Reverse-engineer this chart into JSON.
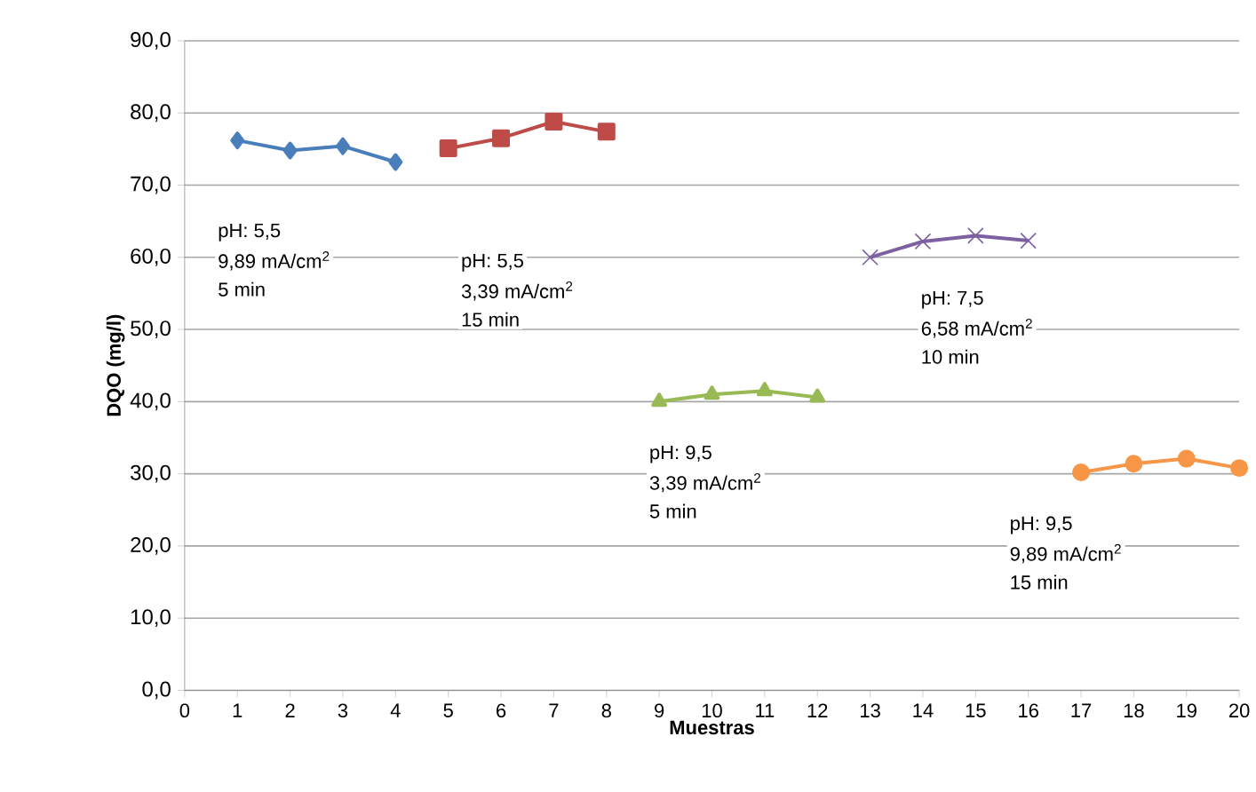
{
  "chart_data": {
    "type": "line",
    "xlabel": "Muestras",
    "ylabel": "DQO  (mg/l)",
    "xlim": [
      0,
      20
    ],
    "xticks": [
      0,
      1,
      2,
      3,
      4,
      5,
      6,
      7,
      8,
      9,
      10,
      11,
      12,
      13,
      14,
      15,
      16,
      17,
      18,
      19,
      20
    ],
    "ylim": [
      0,
      90
    ],
    "yticks": [
      {
        "value": 0,
        "label": "0,0"
      },
      {
        "value": 10,
        "label": "10,0"
      },
      {
        "value": 20,
        "label": "20,0"
      },
      {
        "value": 30,
        "label": "30,0"
      },
      {
        "value": 40,
        "label": "40,0"
      },
      {
        "value": 50,
        "label": "50,0"
      },
      {
        "value": 60,
        "label": "60,0"
      },
      {
        "value": 70,
        "label": "70,0"
      },
      {
        "value": 80,
        "label": "80,0"
      },
      {
        "value": 90,
        "label": "90,0"
      }
    ],
    "grid": "y",
    "series": [
      {
        "color": "#4a7ebb",
        "marker": "diamond",
        "x": [
          1,
          2,
          3,
          4
        ],
        "values": [
          76.2,
          74.8,
          75.4,
          73.2
        ]
      },
      {
        "color": "#be4b48",
        "marker": "square",
        "x": [
          5,
          6,
          7,
          8
        ],
        "values": [
          75.1,
          76.5,
          78.8,
          77.4
        ]
      },
      {
        "color": "#98b954",
        "marker": "triangle",
        "x": [
          9,
          10,
          11,
          12
        ],
        "values": [
          40.0,
          41.0,
          41.5,
          40.6
        ]
      },
      {
        "color": "#7d60a0",
        "marker": "cross",
        "x": [
          13,
          14,
          15,
          16
        ],
        "values": [
          60.0,
          62.2,
          63.0,
          62.3
        ]
      },
      {
        "color": "#f79646",
        "marker": "circle",
        "x": [
          17,
          18,
          19,
          20
        ],
        "values": [
          30.2,
          31.4,
          32.1,
          30.8
        ]
      }
    ],
    "annotations": [
      "pH: 5,5",
      "9,89 mA/cm$^{2}$",
      "5 min",
      "pH: 5,5",
      "3,39 mA/cm$^{2}$",
      "15 min",
      "pH: 7,5",
      "6,58 mA/cm$^{2}$",
      "10 min",
      "pH: 9,5",
      "3,39 mA/cm$^{2}$",
      "5 min",
      "pH: 9,5",
      "9,89 mA/cm$^{2}$",
      "15 min"
    ]
  }
}
